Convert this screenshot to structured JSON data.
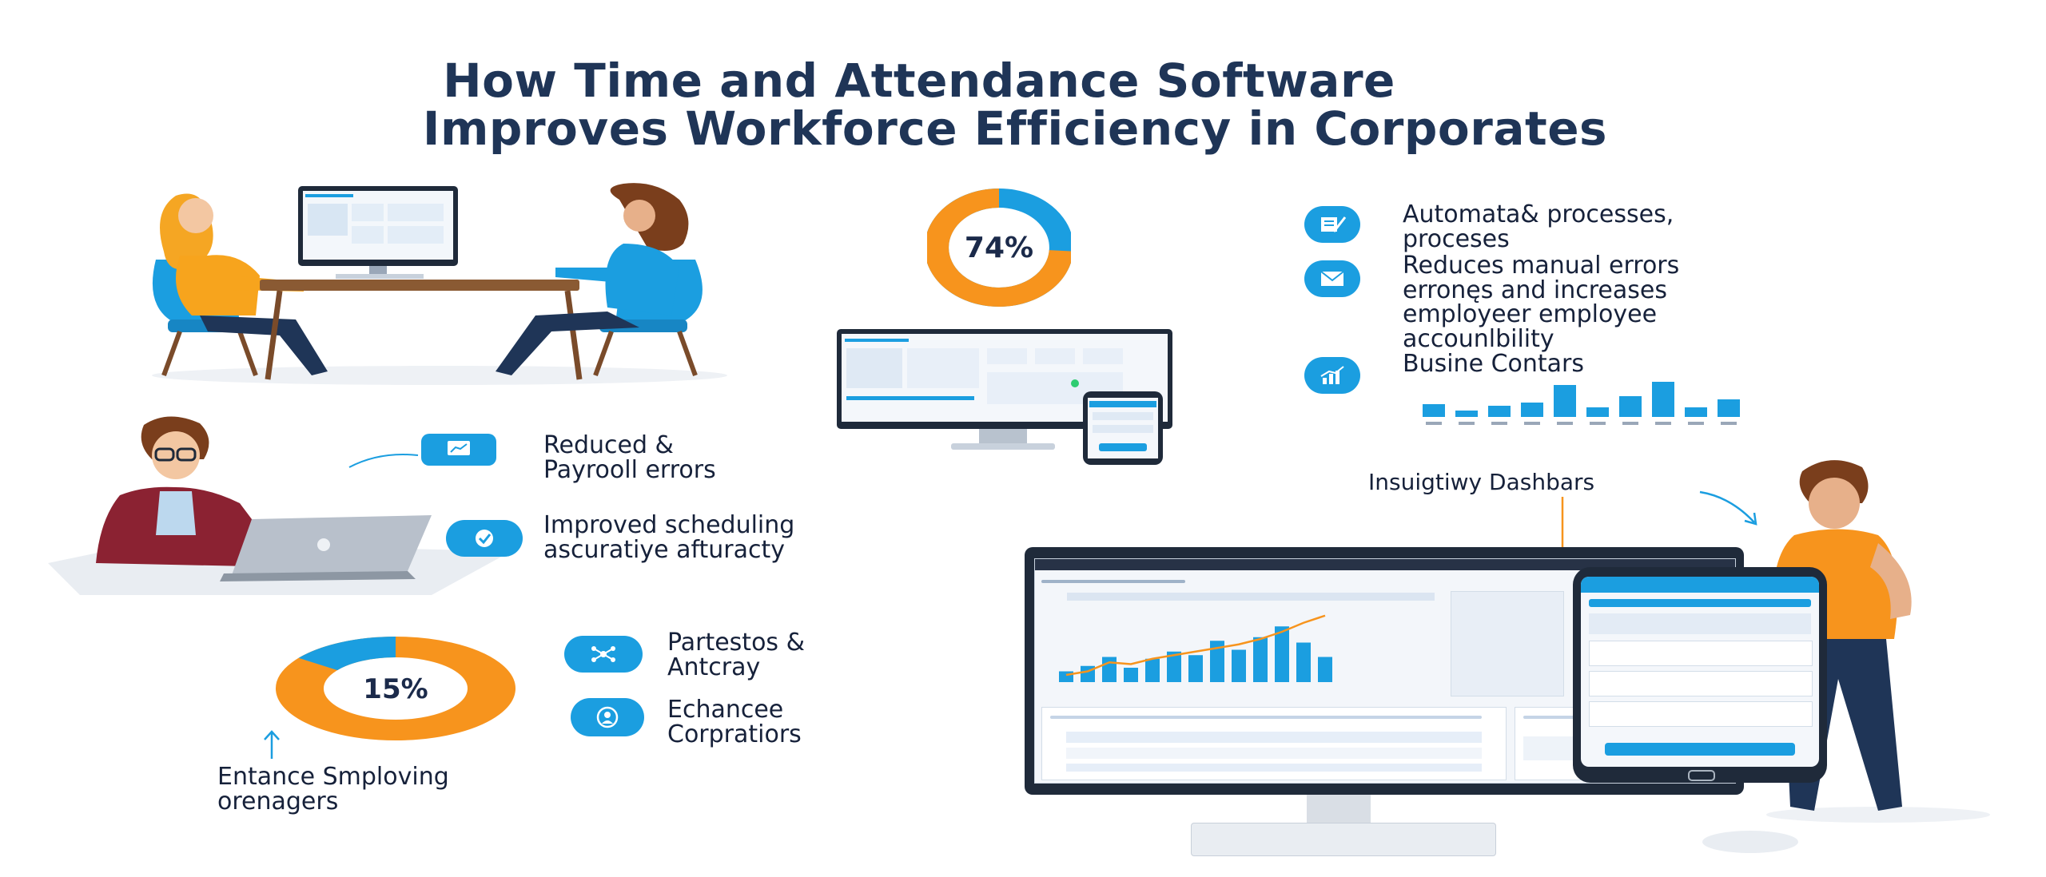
{
  "title": {
    "line1": "How Time and Attendance Software",
    "line2": "Improves Workforce Efficiency in Corporates"
  },
  "donut_top": {
    "value_label": "74%",
    "percent": 74,
    "colors": {
      "main": "#f7941d",
      "rest": "#1b9ee0"
    }
  },
  "donut_bottom": {
    "value_label": "15%",
    "percent": 15,
    "colors": {
      "main": "#f7941d",
      "rest": "#1b9ee0"
    }
  },
  "benefits_right": [
    {
      "icon": "pen-document-icon",
      "lines": [
        "Automata& processes,",
        "proceses"
      ]
    },
    {
      "icon": "envelope-icon",
      "lines": [
        "Reduces manual errors",
        "erronęs and increases",
        "employeer employee",
        "accounlbility"
      ]
    },
    {
      "icon": "bar-chart-icon",
      "lines": [
        "Busine Contars"
      ]
    }
  ],
  "benefits_left": [
    {
      "icon": "monitor-chart-icon",
      "lines": [
        "Reduced &",
        "Payrooll errors"
      ]
    },
    {
      "icon": "check-circle-icon",
      "lines": [
        "Improved scheduling",
        "ascuratiye afturacty"
      ]
    },
    {
      "icon": "network-icon",
      "lines": [
        "Partestos &",
        "Antcray"
      ]
    },
    {
      "icon": "user-circle-icon",
      "lines": [
        "Echancee",
        "Corpratiors"
      ]
    }
  ],
  "bottom_left_caption": [
    "Entance Smploving",
    "orenagers"
  ],
  "dashboard_caption": "Insuigtiwy Dashbars",
  "mini_chart_values": [
    16,
    8,
    14,
    18,
    40,
    12,
    26,
    44,
    12,
    22
  ],
  "dashboard_chart_values": [
    12,
    18,
    28,
    16,
    26,
    34,
    30,
    46,
    36,
    50,
    62,
    44,
    28
  ],
  "dashboard_line_values": [
    8,
    12,
    22,
    20,
    26,
    30,
    34,
    38,
    42,
    48,
    56,
    66,
    74
  ],
  "colors": {
    "accent": "#1b9ee0",
    "orange": "#f7941d",
    "navy": "#1f3557"
  }
}
